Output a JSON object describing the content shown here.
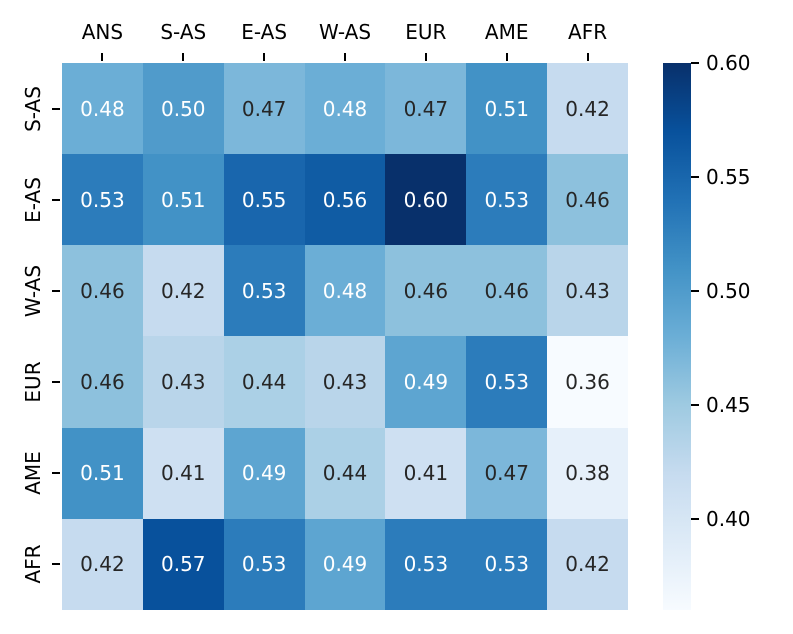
{
  "figure": {
    "background_color": "#ffffff"
  },
  "chart_data": {
    "type": "heatmap",
    "title": "",
    "x_tick_labels": [
      "ANS",
      "S-AS",
      "E-AS",
      "W-AS",
      "EUR",
      "AME",
      "AFR"
    ],
    "y_tick_labels": [
      "S-AS",
      "E-AS",
      "W-AS",
      "EUR",
      "AME",
      "AFR"
    ],
    "values": [
      [
        0.48,
        0.5,
        0.47,
        0.48,
        0.47,
        0.51,
        0.42
      ],
      [
        0.53,
        0.51,
        0.55,
        0.56,
        0.6,
        0.53,
        0.46
      ],
      [
        0.46,
        0.42,
        0.53,
        0.48,
        0.46,
        0.46,
        0.43
      ],
      [
        0.46,
        0.43,
        0.44,
        0.43,
        0.49,
        0.53,
        0.36
      ],
      [
        0.51,
        0.41,
        0.49,
        0.44,
        0.41,
        0.47,
        0.38
      ],
      [
        0.42,
        0.57,
        0.53,
        0.49,
        0.53,
        0.53,
        0.42
      ]
    ],
    "vmin": 0.36,
    "vmax": 0.6,
    "value_format_decimals": 2,
    "colormap_name": "Blues",
    "colormap_stops": [
      "#f7fbff",
      "#deebf7",
      "#c6dbef",
      "#9ecae1",
      "#6baed6",
      "#4292c6",
      "#2171b5",
      "#08519c",
      "#08306b"
    ],
    "colorbar": {
      "position": "right",
      "ticks": [
        0.6,
        0.55,
        0.5,
        0.45,
        0.4
      ]
    },
    "annotation_colors": {
      "on_light_cells": "#262626",
      "on_dark_cells": "#ffffff"
    },
    "axis_color": "#000000",
    "grid": false,
    "xlabel": "",
    "ylabel": ""
  }
}
